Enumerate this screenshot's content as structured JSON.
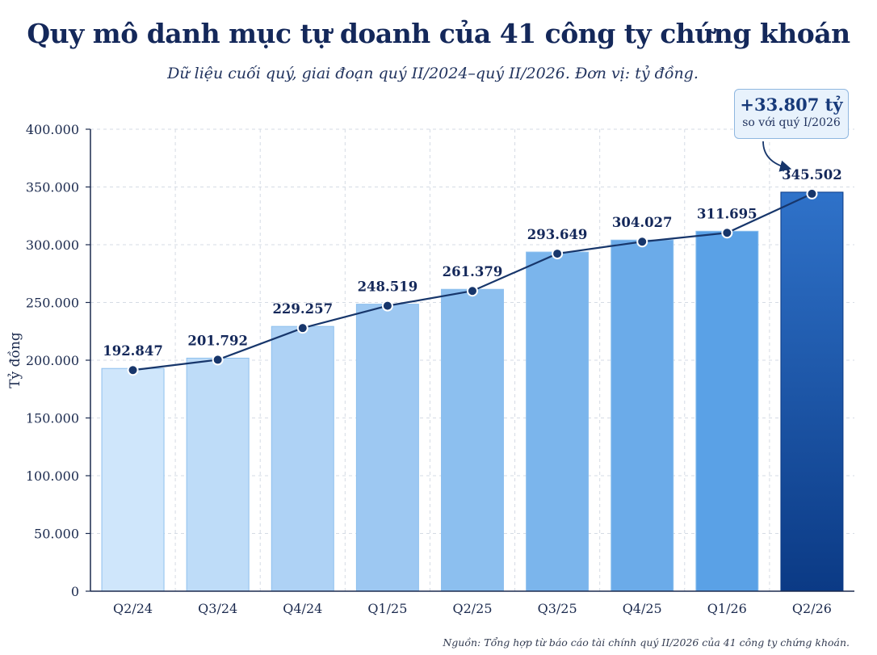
{
  "chart_data": {
    "type": "bar",
    "title": "Quy mô danh mục tự doanh của 41 công ty chứng khoán",
    "subtitle": "Dữ liệu cuối quý, giai đoạn quý II/2024–quý II/2026. Đơn vị: tỷ đồng.",
    "ylabel": "Tỷ đồng",
    "xlabel": "",
    "categories": [
      "Q2/24",
      "Q3/24",
      "Q4/24",
      "Q1/25",
      "Q2/25",
      "Q3/25",
      "Q4/25",
      "Q1/26",
      "Q2/26"
    ],
    "values": [
      192847,
      201792,
      229257,
      248519,
      261379,
      293649,
      304027,
      311695,
      345502
    ],
    "value_labels": [
      "192.847",
      "201.792",
      "229.257",
      "248.519",
      "261.379",
      "293.649",
      "304.027",
      "311.695",
      "345.502"
    ],
    "ylim": [
      0,
      400000
    ],
    "y_ticks": [
      0,
      50000,
      100000,
      150000,
      200000,
      250000,
      300000,
      350000,
      400000
    ],
    "y_tick_labels": [
      "0",
      "50.000",
      "100.000",
      "150.000",
      "200.000",
      "250.000",
      "300.000",
      "350.000",
      "400.000"
    ],
    "grid": true,
    "overlay_line": true,
    "highlighted_category": "Q2/26",
    "annotation": {
      "value": "+33.807 tỷ",
      "text": "so với quý I/2026"
    },
    "source": "Nguồn: Tổng hợp từ báo cáo tài chính quý II/2026 của 41 công ty chứng khoán.",
    "colors": {
      "bar_light": "#cfe6fb",
      "bar_dark": "#5aa1e6",
      "bar_highlight_top": "#2a6ac2",
      "bar_highlight_bottom": "#0b3a85",
      "line": "#17366b",
      "text": "#14285a",
      "grid": "#d5dbe4"
    }
  }
}
